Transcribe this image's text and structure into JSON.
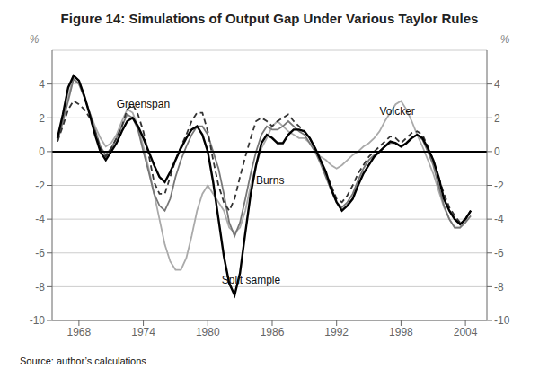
{
  "chart_data": {
    "type": "line",
    "title": "Figure 14: Simulations of Output Gap Under Various Taylor Rules",
    "source": "Source:  author’s calculations",
    "ylabel": "%",
    "y2label": "%",
    "xlim": [
      1965.5,
      2006.0
    ],
    "xticks": [
      1968,
      1974,
      1980,
      1986,
      1992,
      1998,
      2004
    ],
    "ylim": [
      -10,
      6
    ],
    "yticks": [
      -10,
      -8,
      -6,
      -4,
      -2,
      0,
      2,
      4
    ],
    "y2lim": [
      -10,
      6
    ],
    "y2ticks": [
      -10,
      -8,
      -6,
      -4,
      -2,
      0,
      2,
      4
    ],
    "grid": "y",
    "hlines": [
      {
        "y": 0,
        "color": "#000000"
      }
    ],
    "annotations": [
      {
        "text": "Greenspan",
        "x": 1971.5,
        "y": 2.8
      },
      {
        "text": "Volcker",
        "x": 1996.0,
        "y": 2.4
      },
      {
        "text": "Burns",
        "x": 1984.5,
        "y": -1.7
      },
      {
        "text": "Split sample",
        "x": 1981.3,
        "y": -7.6
      }
    ],
    "x": [
      1966.0,
      1966.5,
      1967.0,
      1967.5,
      1968.0,
      1968.5,
      1969.0,
      1969.5,
      1970.0,
      1970.5,
      1971.0,
      1971.5,
      1972.0,
      1972.5,
      1973.0,
      1973.5,
      1974.0,
      1974.5,
      1975.0,
      1975.5,
      1976.0,
      1976.5,
      1977.0,
      1977.5,
      1978.0,
      1978.5,
      1979.0,
      1979.5,
      1980.0,
      1980.5,
      1981.0,
      1981.5,
      1982.0,
      1982.5,
      1983.0,
      1983.5,
      1984.0,
      1984.5,
      1985.0,
      1985.5,
      1986.0,
      1986.5,
      1987.0,
      1987.5,
      1988.0,
      1988.5,
      1989.0,
      1989.5,
      1990.0,
      1990.5,
      1991.0,
      1991.5,
      1992.0,
      1992.5,
      1993.0,
      1993.5,
      1994.0,
      1994.5,
      1995.0,
      1995.5,
      1996.0,
      1996.5,
      1997.0,
      1997.5,
      1998.0,
      1998.5,
      1999.0,
      1999.5,
      2000.0,
      2000.5,
      2001.0,
      2001.5,
      2002.0,
      2002.5,
      2003.0,
      2003.5,
      2004.0,
      2004.5
    ],
    "series": [
      {
        "name": "Volcker",
        "color": "#aaaaaa",
        "line_style": "solid",
        "values": [
          0.6,
          1.8,
          3.2,
          4.5,
          4.2,
          3.3,
          2.3,
          1.5,
          0.8,
          0.3,
          0.5,
          1.0,
          1.8,
          2.5,
          2.3,
          1.5,
          0.3,
          -1.0,
          -2.5,
          -4.0,
          -5.5,
          -6.5,
          -7.0,
          -7.0,
          -6.3,
          -5.0,
          -3.5,
          -2.5,
          -2.0,
          -2.5,
          -3.0,
          -3.5,
          -4.5,
          -4.8,
          -4.5,
          -3.5,
          -2.0,
          -0.8,
          0.2,
          0.8,
          1.5,
          1.8,
          1.5,
          1.2,
          1.0,
          0.8,
          0.8,
          0.5,
          0.0,
          -0.3,
          -0.5,
          -0.8,
          -1.0,
          -0.8,
          -0.5,
          -0.2,
          0.0,
          0.3,
          0.5,
          0.8,
          1.2,
          1.8,
          2.3,
          2.8,
          3.0,
          2.5,
          1.8,
          1.0,
          0.3,
          -0.5,
          -1.3,
          -2.3,
          -3.3,
          -4.0,
          -4.5,
          -4.5,
          -4.0,
          -3.5
        ]
      },
      {
        "name": "Burns",
        "color": "#777777",
        "line_style": "solid",
        "values": [
          0.6,
          1.8,
          3.0,
          4.3,
          4.0,
          3.2,
          2.3,
          1.3,
          0.3,
          -0.2,
          0.2,
          0.8,
          1.5,
          2.2,
          2.0,
          1.3,
          0.0,
          -1.2,
          -2.5,
          -3.2,
          -3.5,
          -2.8,
          -1.5,
          -0.5,
          0.3,
          1.0,
          1.5,
          1.5,
          1.0,
          0.0,
          -1.0,
          -2.5,
          -4.2,
          -5.0,
          -4.2,
          -2.8,
          -1.3,
          0.0,
          1.0,
          1.5,
          1.3,
          1.3,
          1.5,
          1.8,
          1.5,
          1.2,
          1.0,
          0.5,
          0.0,
          -0.7,
          -1.5,
          -2.3,
          -3.0,
          -3.3,
          -3.0,
          -2.5,
          -1.7,
          -1.0,
          -0.5,
          -0.2,
          0.0,
          0.3,
          0.5,
          0.5,
          0.3,
          0.5,
          0.8,
          1.0,
          0.7,
          0.0,
          -0.8,
          -2.0,
          -3.2,
          -4.0,
          -4.5,
          -4.5,
          -4.2,
          -3.8
        ]
      },
      {
        "name": "Greenspan",
        "color": "#333333",
        "line_style": "dashed",
        "values": [
          0.6,
          1.5,
          2.5,
          3.0,
          2.8,
          2.5,
          2.0,
          1.2,
          0.2,
          -0.3,
          0.2,
          0.8,
          1.5,
          2.5,
          2.8,
          2.2,
          1.2,
          -0.2,
          -1.8,
          -2.5,
          -2.5,
          -1.5,
          -0.5,
          0.3,
          1.0,
          1.8,
          2.3,
          2.3,
          1.2,
          -0.5,
          -2.0,
          -3.0,
          -3.5,
          -2.8,
          -1.5,
          -0.3,
          0.8,
          1.8,
          2.0,
          1.8,
          1.5,
          1.8,
          2.0,
          2.2,
          1.8,
          1.5,
          1.2,
          0.8,
          0.2,
          -0.5,
          -1.3,
          -2.0,
          -2.8,
          -3.0,
          -2.6,
          -2.0,
          -1.3,
          -0.8,
          -0.3,
          0.0,
          0.3,
          0.6,
          0.9,
          0.8,
          0.5,
          0.8,
          1.1,
          1.2,
          1.0,
          0.3,
          -0.5,
          -1.5,
          -2.5,
          -3.3,
          -3.8,
          -4.2,
          -4.0,
          -3.5
        ]
      },
      {
        "name": "Split sample",
        "color": "#000000",
        "line_style": "solid",
        "values": [
          0.8,
          2.2,
          3.8,
          4.5,
          4.2,
          3.3,
          2.2,
          1.0,
          0.0,
          -0.5,
          0.0,
          0.5,
          1.2,
          1.8,
          2.0,
          1.5,
          0.8,
          0.0,
          -0.8,
          -1.5,
          -1.8,
          -1.2,
          -0.5,
          0.2,
          0.8,
          1.3,
          1.5,
          1.0,
          0.0,
          -1.8,
          -4.0,
          -6.2,
          -7.8,
          -8.5,
          -7.2,
          -4.8,
          -2.5,
          -0.8,
          0.5,
          1.0,
          0.8,
          0.5,
          0.5,
          1.0,
          1.3,
          1.3,
          1.2,
          0.8,
          0.2,
          -0.5,
          -1.2,
          -2.2,
          -3.0,
          -3.5,
          -3.2,
          -2.8,
          -2.0,
          -1.3,
          -0.8,
          -0.3,
          0.0,
          0.3,
          0.6,
          0.5,
          0.3,
          0.5,
          0.8,
          1.0,
          0.8,
          0.2,
          -0.5,
          -1.5,
          -2.8,
          -3.5,
          -4.0,
          -4.3,
          -4.0,
          -3.5
        ]
      }
    ]
  }
}
